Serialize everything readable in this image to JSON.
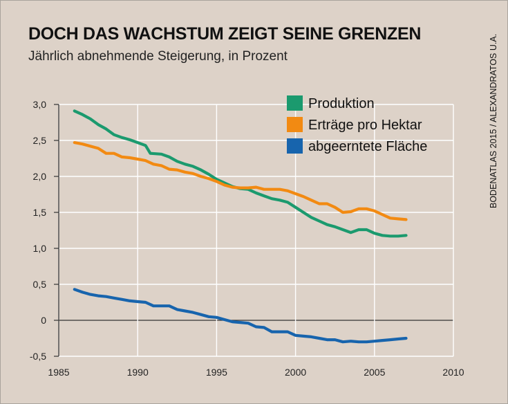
{
  "header": {
    "title": "DOCH DAS WACHSTUM ZEIGT SEINE GRENZEN",
    "subtitle": "Jährlich abnehmende Steigerung, in Prozent",
    "source": "BODENATLAS 2015 / ALEXANDRATOS U.A."
  },
  "colors": {
    "background": "#ddd2c8",
    "grid": "#ffffff",
    "produktion": "#1b9a6e",
    "ertraege": "#f28a12",
    "flaeche": "#1764ad"
  },
  "chart_data": {
    "type": "line",
    "title": "DOCH DAS WACHSTUM ZEIGT SEINE GRENZEN",
    "subtitle": "Jährlich abnehmende Steigerung, in Prozent",
    "xlabel": "",
    "ylabel": "",
    "xlim": [
      1985,
      2010
    ],
    "ylim": [
      -0.5,
      3.0
    ],
    "xticks": [
      1985,
      1990,
      1995,
      2000,
      2005,
      2010
    ],
    "xtick_labels": [
      "1985",
      "1990",
      "1995",
      "2000",
      "2005",
      "2010"
    ],
    "yticks": [
      -0.5,
      0,
      0.5,
      1.0,
      1.5,
      2.0,
      2.5,
      3.0
    ],
    "ytick_labels": [
      "-0,5",
      "0",
      "0,5",
      "1,0",
      "1,5",
      "2,0",
      "2,5",
      "3,0"
    ],
    "grid": true,
    "legend_position": "top-right",
    "series": [
      {
        "name": "Produktion",
        "color": "#1b9a6e",
        "x": [
          1986,
          1986.5,
          1987,
          1987.5,
          1988,
          1988.5,
          1989,
          1989.5,
          1990,
          1990.5,
          1990.8,
          1991.5,
          1992,
          1992.5,
          1993,
          1993.5,
          1994,
          1994.5,
          1995,
          1995.5,
          1996,
          1996.5,
          1997,
          1997.5,
          1998,
          1998.5,
          1999,
          1999.5,
          2000,
          2000.5,
          2001,
          2001.5,
          2002,
          2002.5,
          2003,
          2003.5,
          2004,
          2004.5,
          2005,
          2005.5,
          2006,
          2006.5,
          2007
        ],
        "y": [
          2.91,
          2.86,
          2.8,
          2.72,
          2.66,
          2.58,
          2.54,
          2.51,
          2.47,
          2.43,
          2.32,
          2.31,
          2.27,
          2.21,
          2.17,
          2.14,
          2.09,
          2.03,
          1.96,
          1.91,
          1.86,
          1.83,
          1.82,
          1.77,
          1.73,
          1.69,
          1.67,
          1.64,
          1.57,
          1.5,
          1.43,
          1.38,
          1.33,
          1.3,
          1.26,
          1.22,
          1.26,
          1.26,
          1.21,
          1.18,
          1.17,
          1.17,
          1.18
        ]
      },
      {
        "name": "Erträge pro Hektar",
        "color": "#f28a12",
        "x": [
          1986,
          1986.5,
          1987,
          1987.5,
          1988,
          1988.5,
          1989,
          1989.5,
          1990,
          1990.5,
          1991,
          1991.5,
          1992,
          1992.5,
          1993,
          1993.5,
          1994,
          1994.5,
          1995,
          1995.5,
          1996,
          1996.5,
          1997,
          1997.5,
          1998,
          1998.5,
          1999,
          1999.5,
          2000,
          2000.5,
          2001,
          2001.5,
          2002,
          2002.5,
          2003,
          2003.5,
          2004,
          2004.5,
          2005,
          2005.5,
          2006,
          2006.5,
          2007
        ],
        "y": [
          2.47,
          2.45,
          2.42,
          2.39,
          2.32,
          2.32,
          2.27,
          2.26,
          2.24,
          2.22,
          2.17,
          2.15,
          2.1,
          2.09,
          2.06,
          2.04,
          2.0,
          1.97,
          1.93,
          1.88,
          1.85,
          1.84,
          1.84,
          1.85,
          1.82,
          1.82,
          1.82,
          1.8,
          1.76,
          1.72,
          1.67,
          1.62,
          1.62,
          1.57,
          1.5,
          1.51,
          1.55,
          1.55,
          1.52,
          1.47,
          1.42,
          1.41,
          1.4
        ]
      },
      {
        "name": "abgeerntete Fläche",
        "color": "#1764ad",
        "x": [
          1986,
          1986.5,
          1987,
          1987.5,
          1988,
          1988.5,
          1989,
          1989.5,
          1990,
          1990.5,
          1991,
          1991.5,
          1992,
          1992.5,
          1993,
          1993.5,
          1994,
          1994.5,
          1995,
          1995.5,
          1996,
          1996.5,
          1997,
          1997.5,
          1998,
          1998.5,
          1999,
          1999.5,
          2000,
          2000.5,
          2001,
          2001.5,
          2002,
          2002.5,
          2003,
          2003.5,
          2004,
          2004.5,
          2005,
          2005.5,
          2006,
          2006.5,
          2007
        ],
        "y": [
          0.43,
          0.39,
          0.36,
          0.34,
          0.33,
          0.31,
          0.29,
          0.27,
          0.26,
          0.25,
          0.2,
          0.2,
          0.2,
          0.15,
          0.13,
          0.11,
          0.08,
          0.05,
          0.04,
          0.01,
          -0.02,
          -0.03,
          -0.04,
          -0.09,
          -0.1,
          -0.16,
          -0.16,
          -0.16,
          -0.21,
          -0.22,
          -0.23,
          -0.25,
          -0.27,
          -0.27,
          -0.3,
          -0.29,
          -0.3,
          -0.3,
          -0.29,
          -0.28,
          -0.27,
          -0.26,
          -0.25
        ]
      }
    ]
  }
}
